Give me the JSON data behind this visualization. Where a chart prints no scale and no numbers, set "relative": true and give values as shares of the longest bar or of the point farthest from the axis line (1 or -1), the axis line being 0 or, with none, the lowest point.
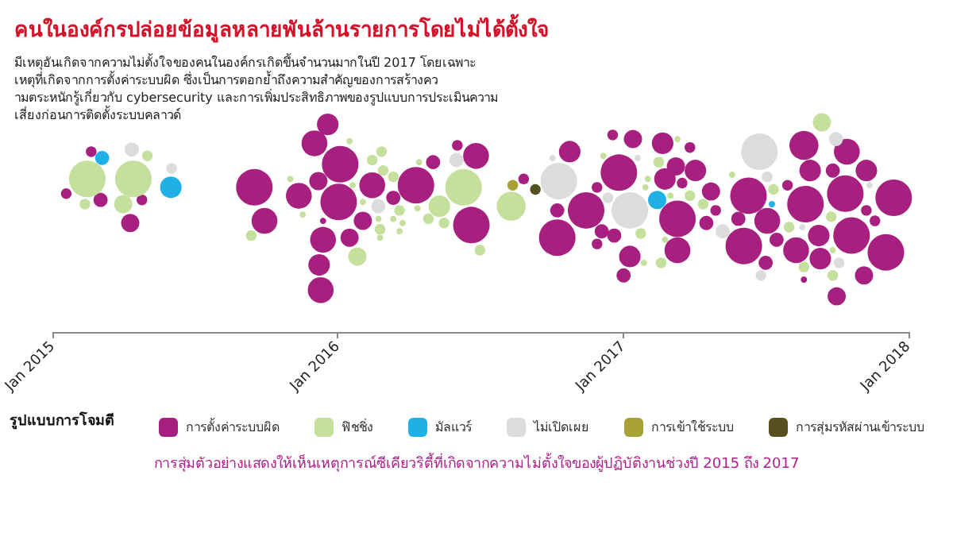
{
  "chart_data": {
    "type": "bubble",
    "title": "คนในองค์กรปล่อยข้อมูลหลายพันล้านรายการโดยไม่ได้ตั้งใจ",
    "subtitle": "มีเหตุอันเกิดจากความไม่ตั้งใจของคนในองค์กรเกิดขึ้นจำนวนมากในปี 2017 โดยเฉพาะเหตุที่เกิดจากการตั้งค่าระบบผิด ซึ่งเป็นการตอกย้ำถึงความสำคัญของการสร้างความตระหนักรู้เกี่ยวกับ cybersecurity และการเพิ่มประสิทธิภาพของรูปแบบการประเมินความเสี่ยงก่อนการติดตั้งระบบคลาวด์",
    "legend_title": "รูปแบบการโจมตี",
    "annotations": [
      "การสุ่มตัวอย่างแสดงให้เห็นเหตุการณ์ซีเคียวริตี้ที่เกิดจากความไม่ตั้งใจของผู้ปฏิบัติงานช่วงปี 2015 ถึง 2017"
    ],
    "relative": true,
    "legend": "bottom",
    "xlim": [
      "2015-01-01",
      "2018-01-01"
    ],
    "xticks": [
      {
        "value": "2015-01-01",
        "label": "Jan 2015"
      },
      {
        "value": "2016-01-01",
        "label": "Jan 2016"
      },
      {
        "value": "2017-01-01",
        "label": "Jan 2017"
      },
      {
        "value": "2018-01-01",
        "label": "Jan 2018"
      }
    ],
    "series": [
      {
        "name": "การตั้งค่าระบบผิด",
        "color": "#a8207f",
        "x": [
          "2015-02-19",
          "2015-01-18",
          "2015-03-03",
          "2015-04-25",
          "2015-04-10",
          "2015-09-16",
          "2015-11-12",
          "2015-09-29",
          "2015-12-02",
          "2015-12-19",
          "2016-01-04",
          "2015-12-07",
          "2016-01-02",
          "2015-12-13",
          "2016-02-02",
          "2015-12-13",
          "2016-01-16",
          "2015-12-08",
          "2015-12-10",
          "2016-02-14",
          "2016-03-12",
          "2016-04-10",
          "2016-05-02",
          "2016-06-02",
          "2016-06-26",
          "2016-06-20",
          "2016-08-26",
          "2016-10-24",
          "2016-10-08",
          "2016-11-14",
          "2016-10-08",
          "2016-11-28",
          "2016-12-04",
          "2016-11-28",
          "2016-12-18",
          "2017-01-13",
          "2017-02-20",
          "2017-03-27",
          "2016-12-26",
          "2017-03-09",
          "2017-04-03",
          "2017-02-23",
          "2017-03-17",
          "2017-04-23",
          "2017-03-11",
          "2017-04-29",
          "2017-04-17",
          "2016-12-20",
          "2017-03-11",
          "2017-01-09",
          "2017-01-01",
          "2017-06-10",
          "2017-07-30",
          "2017-05-28",
          "2017-07-04",
          "2017-06-04",
          "2017-07-16",
          "2017-08-22",
          "2017-08-10",
          "2017-07-02",
          "2017-08-20",
          "2017-08-20",
          "2017-10-14",
          "2017-08-28",
          "2017-09-26",
          "2017-11-08",
          "2017-10-12",
          "2017-12-13",
          "2017-11-08",
          "2017-11-19",
          "2017-10-20",
          "2017-09-08",
          "2017-09-10",
          "2017-12-03",
          "2017-11-05",
          "2017-10-01"
        ],
        "values": [
          0.86,
          0.66,
          0.63,
          0.63,
          0.52,
          0.69,
          0.65,
          0.53,
          0.9,
          0.99,
          0.8,
          0.72,
          0.62,
          0.53,
          0.53,
          0.44,
          0.45,
          0.32,
          0.2,
          0.7,
          0.64,
          0.7,
          0.81,
          0.89,
          0.84,
          0.51,
          0.73,
          0.86,
          0.58,
          0.58,
          0.45,
          0.69,
          0.48,
          0.42,
          0.94,
          0.92,
          0.9,
          0.88,
          0.76,
          0.79,
          0.77,
          0.73,
          0.71,
          0.67,
          0.54,
          0.58,
          0.52,
          0.46,
          0.39,
          0.36,
          0.27,
          0.65,
          0.7,
          0.54,
          0.53,
          0.41,
          0.44,
          0.61,
          0.39,
          0.33,
          0.25,
          0.89,
          0.86,
          0.77,
          0.77,
          0.77,
          0.66,
          0.64,
          0.58,
          0.53,
          0.46,
          0.46,
          0.35,
          0.38,
          0.27,
          0.17
        ],
        "sizes": [
          0.085,
          0.085,
          0.15,
          0.085,
          0.25,
          1,
          0.5,
          0.5,
          0.5,
          0.35,
          1,
          0.25,
          1,
          0.03,
          0.25,
          0.5,
          0.25,
          0.35,
          0.5,
          0.5,
          0.15,
          1,
          0.15,
          0.085,
          0.5,
          1,
          0.085,
          0.35,
          0.15,
          1,
          1,
          0.085,
          0.15,
          0.085,
          0.085,
          0.25,
          0.35,
          0.085,
          1,
          0.25,
          0.35,
          0.35,
          0.085,
          0.25,
          1,
          0.085,
          0.15,
          0.15,
          0.5,
          0.35,
          0.15,
          1,
          0.085,
          0.15,
          0.5,
          1,
          0.15,
          1,
          0.5,
          0.15,
          0.03,
          0.63,
          0.5,
          0.35,
          0.15,
          0.35,
          1,
          1,
          0.085,
          0.085,
          1,
          0.35,
          0.35,
          1,
          0.25,
          0.25
        ]
      },
      {
        "name": "ฟิชชิ่ง",
        "color": "#c5df9d",
        "x": [
          "2015-05-02",
          "2015-02-14",
          "2015-04-14",
          "2015-02-11",
          "2015-04-01",
          "2015-11-01",
          "2015-11-17",
          "2015-09-12",
          "2016-01-16",
          "2016-01-20",
          "2016-02-02",
          "2016-01-26",
          "2016-02-14",
          "2016-02-26",
          "2016-02-28",
          "2016-03-12",
          "2016-02-22",
          "2016-03-20",
          "2016-02-24",
          "2016-03-12",
          "2016-03-24",
          "2016-03-20",
          "2016-02-24",
          "2016-04-14",
          "2016-04-12",
          "2016-04-26",
          "2016-05-10",
          "2016-05-16",
          "2016-06-10",
          "2016-07-01",
          "2016-08-10",
          "2016-12-06",
          "2017-03-11",
          "2017-02-15",
          "2017-02-01",
          "2017-01-29",
          "2017-03-02",
          "2017-03-27",
          "2017-04-13",
          "2017-01-23",
          "2017-02-23",
          "2017-01-27",
          "2017-02-18",
          "2017-05-20",
          "2017-07-12",
          "2017-08-01",
          "2017-08-20",
          "2017-09-12",
          "2017-09-24",
          "2017-09-26",
          "2017-09-26"
        ],
        "values": [
          0.84,
          0.73,
          0.73,
          0.61,
          0.61,
          0.73,
          0.56,
          0.46,
          0.91,
          0.7,
          0.62,
          0.36,
          0.82,
          0.86,
          0.77,
          0.74,
          0.54,
          0.58,
          0.49,
          0.54,
          0.52,
          0.48,
          0.45,
          0.81,
          0.59,
          0.54,
          0.6,
          0.52,
          0.69,
          0.39,
          0.6,
          0.84,
          0.92,
          0.81,
          0.73,
          0.69,
          0.65,
          0.65,
          0.61,
          0.47,
          0.44,
          0.33,
          0.33,
          0.75,
          0.68,
          0.5,
          0.31,
          1,
          0.55,
          0.39,
          0.27
        ],
        "sizes": [
          0.085,
          1,
          1,
          0.085,
          0.25,
          0.03,
          0.03,
          0.085,
          0.03,
          0.03,
          0.03,
          0.25,
          0.085,
          0.085,
          0.085,
          0.085,
          0.03,
          0.085,
          0.085,
          0.03,
          0.03,
          0.03,
          0.03,
          0.03,
          0.03,
          0.085,
          0.35,
          0.085,
          1,
          0.085,
          0.63,
          0.03,
          0.03,
          0.085,
          0.03,
          0.03,
          0.03,
          0.085,
          0.085,
          0.085,
          0.03,
          0.03,
          0.085,
          0.03,
          0.085,
          0.085,
          0.085,
          0.25,
          0.085,
          0.03,
          0.085
        ]
      },
      {
        "name": "มัลแวร์",
        "color": "#1fb0e6",
        "x": [
          "2015-03-05",
          "2015-06-01",
          "2017-02-13",
          "2017-07-10"
        ],
        "values": [
          0.83,
          0.69,
          0.63,
          0.61
        ],
        "sizes": [
          0.15,
          0.35,
          0.25,
          0.03
        ]
      },
      {
        "name": "ไม่เปิดเผย",
        "color": "#dcdcdc",
        "x": [
          "2015-04-12",
          "2015-06-02",
          "2016-02-22",
          "2016-06-01",
          "2016-10-02",
          "2016-10-10",
          "2016-12-12",
          "2017-01-19",
          "2017-01-09",
          "2017-05-08",
          "2017-06-24",
          "2017-07-04",
          "2017-08-18",
          "2017-06-26",
          "2017-09-30",
          "2017-11-12",
          "2017-10-04"
        ],
        "values": [
          0.87,
          0.78,
          0.6,
          0.82,
          0.83,
          0.72,
          0.64,
          0.83,
          0.58,
          0.48,
          0.86,
          0.74,
          0.5,
          0.27,
          0.92,
          0.7,
          0.33
        ],
        "sizes": [
          0.15,
          0.085,
          0.15,
          0.15,
          0.03,
          1,
          0.085,
          0.03,
          1,
          0.15,
          1,
          0.085,
          0.03,
          0.085,
          0.15,
          0.03,
          0.085
        ]
      },
      {
        "name": "การเข้าใช้ระบบ",
        "color": "#a8a236",
        "x": [
          "2016-08-12"
        ],
        "values": [
          0.7
        ],
        "sizes": [
          0.085
        ]
      },
      {
        "name": "การสุ่มรหัสผ่านเข้าระบบ",
        "color": "#56501f",
        "x": [
          "2016-09-10"
        ],
        "values": [
          0.68
        ],
        "sizes": [
          0.085
        ]
      }
    ]
  }
}
